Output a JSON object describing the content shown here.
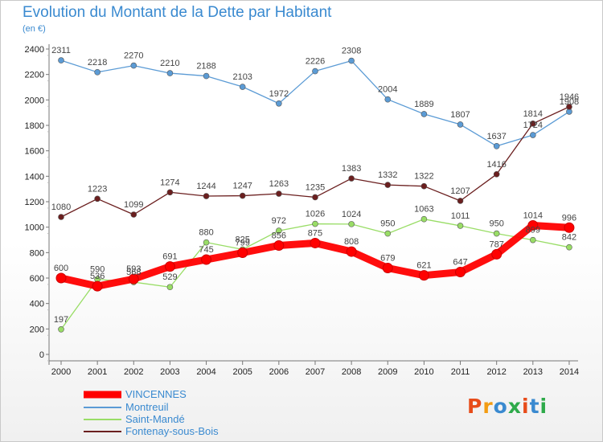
{
  "header": {
    "title": "Evolution du Montant de la Dette par Habitant",
    "unit": "(en €)"
  },
  "logo": {
    "text": "Proxiti",
    "colors": [
      "#e74c1a",
      "#f39c12",
      "#3a8ad0",
      "#2eaa4a",
      "#e74c1a",
      "#3a8ad0",
      "#2eaa4a"
    ]
  },
  "chart_data": {
    "type": "line",
    "x": [
      "2000",
      "2001",
      "2002",
      "2003",
      "2004",
      "2005",
      "2006",
      "2007",
      "2008",
      "2009",
      "2010",
      "2011",
      "2012",
      "2013",
      "2014"
    ],
    "ylim": [
      0,
      2400
    ],
    "yticks": [
      0,
      200,
      400,
      600,
      800,
      1000,
      1200,
      1400,
      1600,
      1800,
      2000,
      2200,
      2400
    ],
    "grid": false,
    "legend": "bottom-left",
    "series": [
      {
        "name": "VINCENNES",
        "color": "#ff0000",
        "values": [
          600,
          536,
          593,
          691,
          745,
          799,
          856,
          875,
          808,
          679,
          621,
          647,
          787,
          1014,
          996
        ]
      },
      {
        "name": "Montreuil",
        "color": "#5b9bd5",
        "values": [
          2311,
          2218,
          2270,
          2210,
          2188,
          2103,
          1972,
          2226,
          2308,
          2004,
          1889,
          1807,
          1637,
          1724,
          1908
        ]
      },
      {
        "name": "Saint-Mandé",
        "color": "#99dd66",
        "values": [
          197,
          590,
          568,
          529,
          880,
          825,
          972,
          1026,
          1024,
          950,
          1063,
          1011,
          950,
          899,
          842
        ]
      },
      {
        "name": "Fontenay-sous-Bois",
        "color": "#6b1f1f",
        "values": [
          1080,
          1223,
          1099,
          1274,
          1244,
          1247,
          1263,
          1235,
          1383,
          1332,
          1322,
          1207,
          1416,
          1814,
          1946
        ]
      }
    ]
  }
}
